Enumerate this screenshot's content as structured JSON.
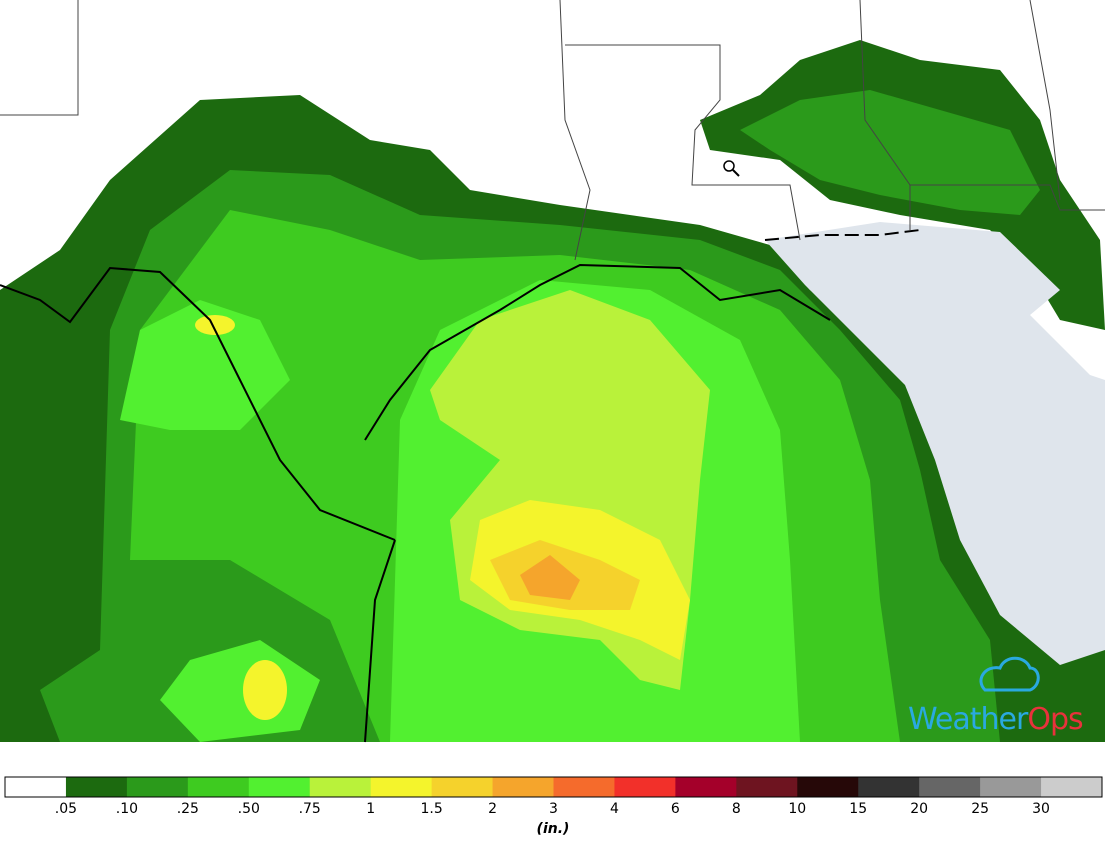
{
  "legend": {
    "labels": [
      ".05",
      ".10",
      ".25",
      ".50",
      ".75",
      "1",
      "1.5",
      "2",
      "3",
      "4",
      "6",
      "8",
      "10",
      "15",
      "20",
      "25",
      "30"
    ],
    "colors": [
      "#ffffff",
      "#1c6a0f",
      "#2b9a1b",
      "#3ecb20",
      "#52f030",
      "#b9f23a",
      "#f4f42c",
      "#f5d22c",
      "#f5a52c",
      "#f56b2c",
      "#f2302a",
      "#a4002a",
      "#6e1420",
      "#260808",
      "#333333",
      "#666666",
      "#999999",
      "#cccccc"
    ],
    "unit": "(in.)"
  },
  "logo": {
    "parts": [
      "Weather",
      "Ops"
    ]
  }
}
